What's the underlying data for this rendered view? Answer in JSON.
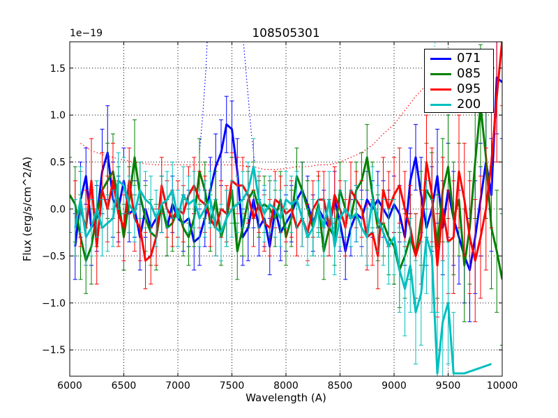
{
  "chart_data": {
    "type": "line",
    "title": "108505301",
    "xlabel": "Wavelength (A)",
    "ylabel": "Flux (erg/s/cm^2/A)",
    "offset_label": "1e−19",
    "xlim": [
      6000,
      10000
    ],
    "ylim": [
      -1.78,
      1.78
    ],
    "xticks": [
      6000,
      6500,
      7000,
      7500,
      8000,
      8500,
      9000,
      9500,
      10000
    ],
    "xtick_labels": [
      "6000",
      "6500",
      "7000",
      "7500",
      "8000",
      "8500",
      "9000",
      "9500",
      "10000"
    ],
    "yticks": [
      -1.5,
      -1.0,
      -0.5,
      0.0,
      0.5,
      1.0,
      1.5
    ],
    "ytick_labels": [
      "−1.5",
      "−1.0",
      "−0.5",
      "0.0",
      "0.5",
      "1.0",
      "1.5"
    ],
    "grid": true,
    "legend_position": "top-right",
    "series": [
      {
        "name": "071",
        "color": "#0000ff",
        "x": [
          6050,
          6100,
          6150,
          6200,
          6250,
          6300,
          6350,
          6400,
          6450,
          6500,
          6550,
          6600,
          6650,
          6700,
          6750,
          6800,
          6850,
          6900,
          6950,
          7000,
          7050,
          7100,
          7150,
          7200,
          7250,
          7300,
          7350,
          7400,
          7450,
          7500,
          7550,
          7600,
          7650,
          7700,
          7750,
          7800,
          7850,
          7900,
          7950,
          8000,
          8050,
          8100,
          8150,
          8200,
          8250,
          8300,
          8350,
          8400,
          8450,
          8500,
          8550,
          8600,
          8650,
          8700,
          8750,
          8800,
          8850,
          8900,
          8950,
          9000,
          9050,
          9100,
          9150,
          9200,
          9250,
          9300,
          9350,
          9400,
          9450,
          9500,
          9550,
          9600,
          9650,
          9700,
          9750,
          9800,
          9850,
          9900,
          9950,
          10000
        ],
        "y": [
          -0.4,
          0.1,
          0.35,
          -0.2,
          -0.1,
          0.4,
          0.6,
          0.1,
          0.0,
          0.3,
          -0.05,
          0.0,
          -0.3,
          0.0,
          -0.2,
          -0.1,
          0.05,
          -0.2,
          0.05,
          -0.1,
          -0.15,
          -0.1,
          -0.35,
          -0.3,
          -0.1,
          0.2,
          0.45,
          0.6,
          0.9,
          0.85,
          0.4,
          -0.3,
          -0.2,
          0.1,
          -0.2,
          -0.1,
          -0.4,
          0.0,
          -0.25,
          -0.15,
          -0.05,
          0.1,
          0.2,
          0.05,
          -0.15,
          0.0,
          -0.1,
          -0.2,
          0.1,
          -0.15,
          -0.45,
          -0.2,
          -0.05,
          -0.1,
          0.1,
          0.0,
          0.1,
          0.0,
          -0.1,
          0.05,
          -0.05,
          -0.3,
          0.3,
          0.55,
          0.15,
          -0.2,
          0.0,
          0.35,
          -0.2,
          0.2,
          -0.1,
          -0.3,
          -0.5,
          -0.65,
          -0.3,
          0.1,
          0.5,
          0.15,
          1.4,
          1.35
        ],
        "err": [
          0.35,
          0.4,
          0.3,
          0.4,
          0.35,
          0.45,
          0.5,
          0.4,
          0.35,
          0.35,
          0.3,
          0.3,
          0.35,
          0.3,
          0.3,
          0.3,
          0.3,
          0.3,
          0.3,
          0.3,
          0.3,
          0.3,
          0.3,
          0.3,
          0.3,
          0.35,
          0.35,
          0.35,
          0.3,
          0.3,
          0.35,
          0.3,
          0.35,
          0.3,
          0.3,
          0.3,
          0.3,
          0.3,
          0.3,
          0.3,
          0.3,
          0.3,
          0.3,
          0.3,
          0.3,
          0.3,
          0.3,
          0.3,
          0.3,
          0.3,
          0.3,
          0.3,
          0.3,
          0.3,
          0.3,
          0.3,
          0.3,
          0.3,
          0.3,
          0.3,
          0.3,
          0.3,
          0.35,
          0.35,
          0.4,
          0.4,
          0.45,
          0.5,
          0.5,
          0.5,
          0.5,
          0.5,
          0.5,
          0.55,
          0.6,
          0.6,
          0.6,
          0.6,
          0.6,
          0.6
        ]
      },
      {
        "name": "085",
        "color": "#008000",
        "x": [
          6000,
          6050,
          6100,
          6150,
          6200,
          6250,
          6300,
          6350,
          6400,
          6450,
          6500,
          6550,
          6600,
          6650,
          6700,
          6750,
          6800,
          6850,
          6900,
          6950,
          7000,
          7050,
          7100,
          7150,
          7200,
          7250,
          7300,
          7350,
          7400,
          7450,
          7500,
          7550,
          7600,
          7650,
          7700,
          7750,
          7800,
          7850,
          7900,
          7950,
          8000,
          8050,
          8100,
          8150,
          8200,
          8250,
          8300,
          8350,
          8400,
          8450,
          8500,
          8550,
          8600,
          8650,
          8700,
          8750,
          8800,
          8850,
          8900,
          8950,
          9000,
          9050,
          9100,
          9150,
          9200,
          9250,
          9300,
          9350,
          9400,
          9450,
          9500,
          9550,
          9600,
          9650,
          9700,
          9750,
          9800,
          9850,
          9900,
          9950,
          10000
        ],
        "y": [
          0.15,
          0.05,
          -0.3,
          -0.55,
          -0.4,
          -0.05,
          0.2,
          0.3,
          0.4,
          0.1,
          -0.3,
          0.1,
          0.55,
          0.15,
          -0.1,
          -0.25,
          -0.3,
          0.05,
          -0.2,
          -0.15,
          0.0,
          -0.2,
          -0.3,
          -0.1,
          0.4,
          0.2,
          -0.15,
          0.1,
          -0.3,
          -0.1,
          0.2,
          -0.45,
          -0.2,
          0.1,
          0.2,
          0.0,
          0.05,
          0.0,
          -0.1,
          0.1,
          -0.3,
          -0.1,
          0.35,
          0.2,
          0.0,
          -0.2,
          0.05,
          -0.45,
          -0.2,
          -0.3,
          0.2,
          0.0,
          -0.1,
          0.2,
          0.3,
          0.55,
          0.15,
          -0.2,
          -0.15,
          -0.3,
          -0.4,
          -0.65,
          -0.5,
          -0.3,
          -0.5,
          -0.1,
          0.2,
          0.1,
          -0.4,
          0.2,
          0.45,
          -0.1,
          0.1,
          -0.6,
          -0.2,
          0.5,
          1.1,
          0.55,
          -0.2,
          -0.45,
          -0.75
        ],
        "err": [
          0.4,
          0.4,
          0.45,
          0.35,
          0.4,
          0.35,
          0.4,
          0.4,
          0.4,
          0.35,
          0.35,
          0.35,
          0.4,
          0.35,
          0.35,
          0.35,
          0.35,
          0.3,
          0.3,
          0.3,
          0.3,
          0.3,
          0.3,
          0.3,
          0.35,
          0.3,
          0.3,
          0.3,
          0.3,
          0.3,
          0.35,
          0.3,
          0.3,
          0.3,
          0.3,
          0.3,
          0.3,
          0.3,
          0.3,
          0.3,
          0.3,
          0.3,
          0.3,
          0.3,
          0.3,
          0.3,
          0.3,
          0.3,
          0.3,
          0.3,
          0.3,
          0.3,
          0.3,
          0.3,
          0.3,
          0.35,
          0.35,
          0.35,
          0.35,
          0.4,
          0.4,
          0.4,
          0.45,
          0.45,
          0.45,
          0.5,
          0.5,
          0.5,
          0.55,
          0.55,
          0.55,
          0.6,
          0.6,
          0.6,
          0.6,
          0.6,
          0.65,
          0.65,
          0.65,
          0.65,
          0.7
        ]
      },
      {
        "name": "095",
        "color": "#ff0000",
        "x": [
          6050,
          6100,
          6150,
          6200,
          6250,
          6300,
          6350,
          6400,
          6450,
          6500,
          6550,
          6600,
          6650,
          6700,
          6750,
          6800,
          6850,
          6900,
          6950,
          7000,
          7050,
          7100,
          7150,
          7200,
          7250,
          7300,
          7350,
          7400,
          7450,
          7500,
          7550,
          7600,
          7650,
          7700,
          7750,
          7800,
          7850,
          7900,
          7950,
          8000,
          8050,
          8100,
          8150,
          8200,
          8250,
          8300,
          8350,
          8400,
          8450,
          8500,
          8550,
          8600,
          8650,
          8700,
          8750,
          8800,
          8850,
          8900,
          8950,
          9000,
          9050,
          9100,
          9150,
          9200,
          9250,
          9300,
          9350,
          9400,
          9450,
          9500,
          9550,
          9600,
          9650,
          9700,
          9750,
          9800,
          9850,
          9900,
          9950,
          10000
        ],
        "y": [
          -0.1,
          0.0,
          -0.2,
          0.3,
          -0.4,
          0.2,
          0.0,
          0.3,
          -0.05,
          -0.2,
          0.3,
          -0.1,
          -0.2,
          -0.55,
          -0.5,
          -0.3,
          0.25,
          0.0,
          -0.1,
          0.0,
          -0.05,
          0.15,
          0.25,
          0.1,
          0.05,
          -0.1,
          -0.2,
          0.0,
          -0.05,
          0.3,
          0.25,
          0.25,
          0.15,
          -0.1,
          0.05,
          -0.15,
          -0.2,
          0.1,
          0.05,
          -0.05,
          0.0,
          -0.2,
          -0.1,
          -0.25,
          0.0,
          0.1,
          0.1,
          -0.2,
          0.15,
          0.0,
          -0.2,
          0.2,
          0.1,
          0.0,
          -0.3,
          -0.25,
          -0.5,
          0.2,
          0.0,
          0.15,
          0.25,
          0.0,
          -0.2,
          -0.5,
          -0.3,
          0.5,
          0.15,
          -0.6,
          0.0,
          -0.35,
          -0.3,
          0.4,
          0.1,
          -0.3,
          -0.55,
          -0.3,
          0.0,
          0.5,
          1.2,
          1.8
        ],
        "err": [
          0.4,
          0.4,
          0.4,
          0.45,
          0.4,
          0.4,
          0.35,
          0.4,
          0.35,
          0.35,
          0.35,
          0.35,
          0.35,
          0.3,
          0.3,
          0.3,
          0.3,
          0.3,
          0.3,
          0.3,
          0.3,
          0.3,
          0.3,
          0.3,
          0.3,
          0.3,
          0.3,
          0.3,
          0.3,
          0.3,
          0.3,
          0.3,
          0.3,
          0.3,
          0.3,
          0.3,
          0.3,
          0.3,
          0.3,
          0.3,
          0.3,
          0.3,
          0.3,
          0.3,
          0.3,
          0.3,
          0.3,
          0.3,
          0.3,
          0.3,
          0.3,
          0.3,
          0.3,
          0.3,
          0.35,
          0.35,
          0.35,
          0.35,
          0.4,
          0.4,
          0.4,
          0.4,
          0.45,
          0.45,
          0.5,
          0.5,
          0.5,
          0.55,
          0.55,
          0.55,
          0.6,
          0.6,
          0.6,
          0.6,
          0.65,
          0.65,
          0.65,
          0.7,
          0.7,
          0.7
        ]
      },
      {
        "name": "200",
        "color": "#00bfbf",
        "x": [
          6050,
          6100,
          6150,
          6200,
          6250,
          6300,
          6350,
          6400,
          6450,
          6500,
          6550,
          6600,
          6650,
          6700,
          6750,
          6800,
          6850,
          6900,
          6950,
          7000,
          7050,
          7100,
          7150,
          7200,
          7250,
          7300,
          7350,
          7400,
          7450,
          7500,
          7550,
          7600,
          7650,
          7700,
          7750,
          7800,
          7850,
          7900,
          7950,
          8000,
          8050,
          8100,
          8150,
          8200,
          8250,
          8300,
          8350,
          8400,
          8450,
          8500,
          8550,
          8600,
          8650,
          8700,
          8750,
          8800,
          8850,
          8900,
          8950,
          9000,
          9050,
          9100,
          9150,
          9200,
          9250,
          9300,
          9350,
          9400,
          9450,
          9500,
          9550,
          9600,
          9650,
          9700,
          9750,
          9800,
          9850,
          9900
        ],
        "y": [
          -0.2,
          0.1,
          -0.3,
          -0.2,
          0.0,
          -0.2,
          -0.15,
          -0.1,
          0.3,
          0.25,
          0.05,
          -0.05,
          0.2,
          0.1,
          0.05,
          -0.1,
          0.05,
          0.1,
          0.2,
          -0.1,
          0.15,
          0.05,
          0.1,
          -0.1,
          0.0,
          0.1,
          -0.2,
          -0.25,
          -0.1,
          0.0,
          0.05,
          0.1,
          0.2,
          0.45,
          0.1,
          -0.05,
          0.05,
          0.0,
          -0.1,
          0.1,
          0.05,
          0.1,
          -0.1,
          -0.3,
          -0.2,
          0.0,
          -0.2,
          0.1,
          -0.4,
          -0.1,
          0.0,
          -0.1,
          -0.05,
          -0.2,
          -0.3,
          0.1,
          -0.1,
          -0.25,
          -0.4,
          -0.3,
          -0.65,
          -0.85,
          -0.6,
          -1.1,
          -0.9,
          -0.3,
          -0.5,
          -1.75,
          -1.2,
          -1.0,
          -1.75,
          -1.75,
          -1.75,
          -1.73,
          -1.71,
          -1.69,
          -1.67,
          -1.65
        ],
        "err": [
          0.3,
          0.35,
          0.3,
          0.3,
          0.3,
          0.3,
          0.3,
          0.3,
          0.3,
          0.3,
          0.3,
          0.3,
          0.3,
          0.3,
          0.3,
          0.3,
          0.3,
          0.3,
          0.3,
          0.3,
          0.3,
          0.3,
          0.3,
          0.3,
          0.3,
          0.3,
          0.3,
          0.3,
          0.3,
          0.3,
          0.3,
          0.3,
          0.3,
          0.3,
          0.3,
          0.3,
          0.3,
          0.3,
          0.3,
          0.3,
          0.3,
          0.3,
          0.3,
          0.3,
          0.3,
          0.3,
          0.3,
          0.3,
          0.3,
          0.3,
          0.3,
          0.3,
          0.3,
          0.3,
          0.3,
          0.35,
          0.35,
          0.35,
          0.4,
          0.4,
          0.45,
          0.5,
          0.5,
          0.55,
          0.55,
          0.6,
          0.6,
          0.65,
          0.65,
          0.65,
          0.65,
          0.0,
          0.0,
          0.0,
          0.0,
          0.0,
          0.0,
          0.0
        ]
      }
    ],
    "dotted_series": [
      {
        "name": "071-dotted",
        "color": "#0000ff",
        "x": [
          7200,
          7230,
          7260,
          7290,
          7320,
          7350,
          7380,
          7410,
          7440,
          7470,
          7500,
          7530,
          7560,
          7590,
          7620,
          7650,
          7680,
          7710
        ],
        "y": [
          0.6,
          1.0,
          1.5,
          2.3,
          3.0,
          3.5,
          3.8,
          3.9,
          3.9,
          3.8,
          3.5,
          3.0,
          2.6,
          2.0,
          1.6,
          1.2,
          0.8,
          0.5
        ]
      },
      {
        "name": "095-dotted",
        "color": "#ff0000",
        "x": [
          6100,
          6200,
          6300,
          6400,
          6500,
          6600,
          6700,
          6800,
          6900,
          7000,
          7100,
          7200,
          7300,
          7400,
          7500,
          7600,
          7700,
          7800,
          7900,
          8000,
          8100,
          8200,
          8300,
          8400,
          8500,
          8600,
          8700,
          8800,
          8900,
          9000,
          9100,
          9200,
          9300
        ],
        "y": [
          0.7,
          0.62,
          0.58,
          0.55,
          0.52,
          0.5,
          0.48,
          0.47,
          0.47,
          0.47,
          0.47,
          0.47,
          0.47,
          0.47,
          0.47,
          0.46,
          0.45,
          0.42,
          0.42,
          0.43,
          0.45,
          0.45,
          0.47,
          0.47,
          0.5,
          0.55,
          0.6,
          0.68,
          0.8,
          0.9,
          1.05,
          1.2,
          1.32
        ]
      },
      {
        "name": "200-dotted",
        "color": "#00bfbf",
        "x": [
          9300,
          9340,
          9380,
          9400,
          9430
        ],
        "y": [
          1.2,
          1.5,
          1.78,
          1.9,
          2.1
        ]
      }
    ]
  }
}
